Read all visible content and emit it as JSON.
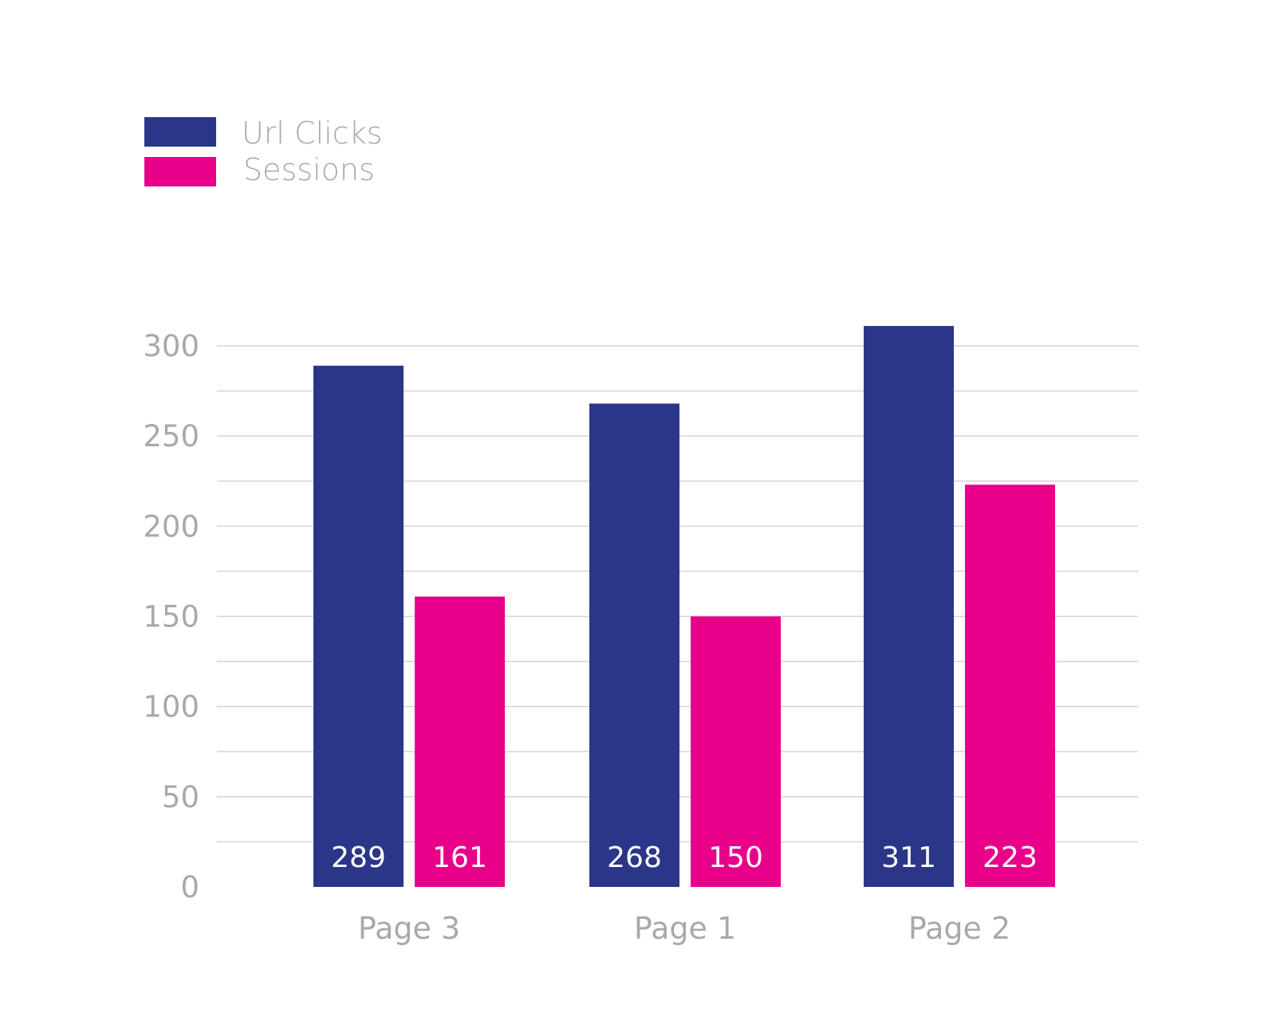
{
  "chart_data": {
    "type": "bar",
    "title": "",
    "xlabel": "",
    "ylabel": "",
    "categories": [
      "Page 3",
      "Page 1",
      "Page 2"
    ],
    "series": [
      {
        "name": "Url Clicks",
        "color": "#2b3689",
        "values": [
          289,
          268,
          311
        ]
      },
      {
        "name": "Sessions",
        "color": "#e8008a",
        "values": [
          161,
          150,
          223
        ]
      }
    ],
    "ylim": [
      0,
      300
    ],
    "yticks": [
      0,
      50,
      100,
      150,
      200,
      250,
      300
    ],
    "minor_grid_step": 25,
    "grid": true,
    "legend_position": "top-left",
    "data_labels_position": "inside-bottom"
  }
}
